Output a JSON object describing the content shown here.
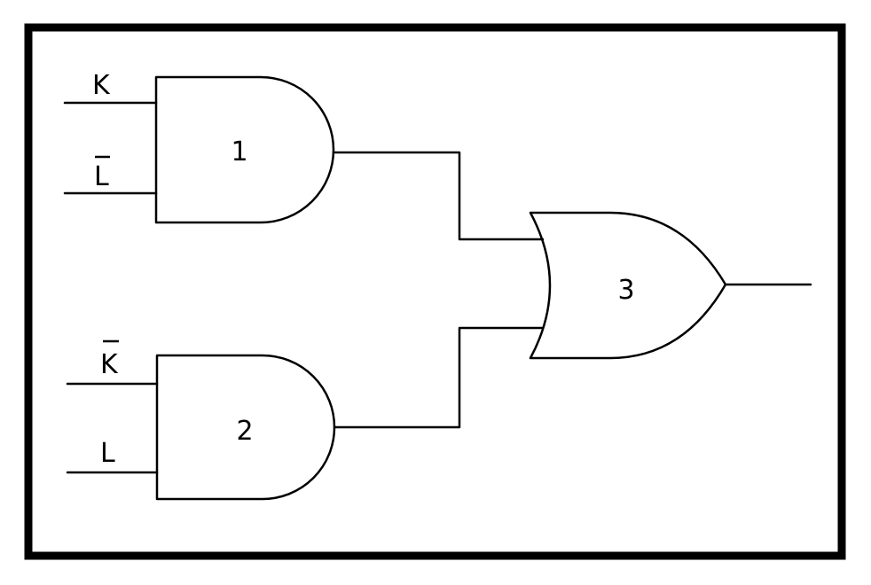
{
  "colors": {
    "line": "#000000",
    "background": "#ffffff"
  },
  "inputs": {
    "k": "K",
    "l_bar": "L",
    "k_bar": "K",
    "l": "L"
  },
  "gates": {
    "gate1": {
      "type": "AND",
      "number": "1"
    },
    "gate2": {
      "type": "AND",
      "number": "2"
    },
    "gate3": {
      "type": "OR",
      "number": "3"
    }
  }
}
